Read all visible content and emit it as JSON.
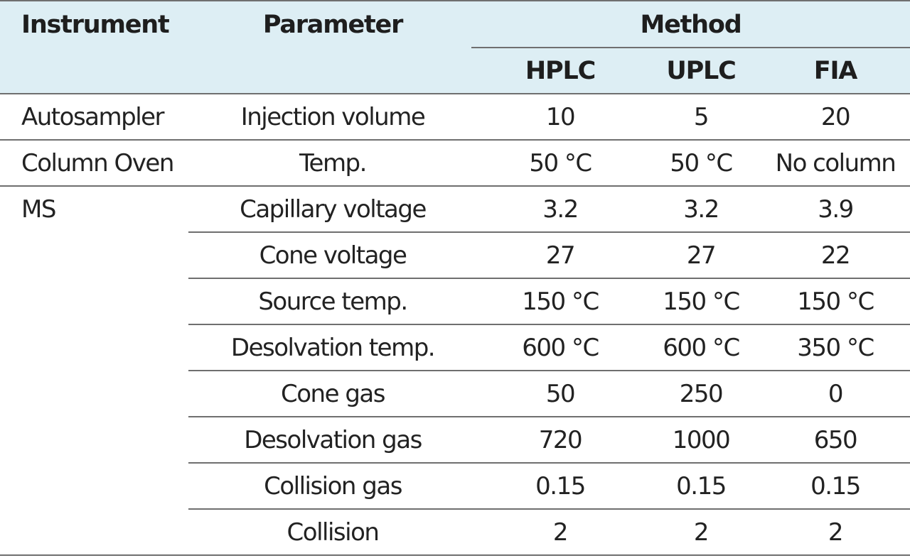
{
  "table": {
    "headers": {
      "instrument": "Instrument",
      "parameter": "Parameter",
      "method": "Method",
      "methods": [
        "HPLC",
        "UPLC",
        "FIA"
      ]
    },
    "rows": [
      {
        "instrument": "Autosampler",
        "parameter": "Injection volume",
        "hplc": "10",
        "uplc": "5",
        "fia": "20"
      },
      {
        "instrument": "Column Oven",
        "parameter": "Temp.",
        "hplc": "50 °C",
        "uplc": "50 °C",
        "fia": "No column"
      },
      {
        "instrument": "MS",
        "parameter": "Capillary voltage",
        "hplc": "3.2",
        "uplc": "3.2",
        "fia": "3.9"
      },
      {
        "instrument": "",
        "parameter": "Cone voltage",
        "hplc": "27",
        "uplc": "27",
        "fia": "22"
      },
      {
        "instrument": "",
        "parameter": "Source temp.",
        "hplc": "150 °C",
        "uplc": "150 °C",
        "fia": "150 °C"
      },
      {
        "instrument": "",
        "parameter": "Desolvation temp.",
        "hplc": "600 °C",
        "uplc": "600 °C",
        "fia": "350 °C"
      },
      {
        "instrument": "",
        "parameter": "Cone gas",
        "hplc": "50",
        "uplc": "250",
        "fia": "0"
      },
      {
        "instrument": "",
        "parameter": "Desolvation gas",
        "hplc": "720",
        "uplc": "1000",
        "fia": "650"
      },
      {
        "instrument": "",
        "parameter": "Collision gas",
        "hplc": "0.15",
        "uplc": "0.15",
        "fia": "0.15"
      },
      {
        "instrument": "",
        "parameter": "Collision",
        "hplc": "2",
        "uplc": "2",
        "fia": "2"
      }
    ]
  }
}
